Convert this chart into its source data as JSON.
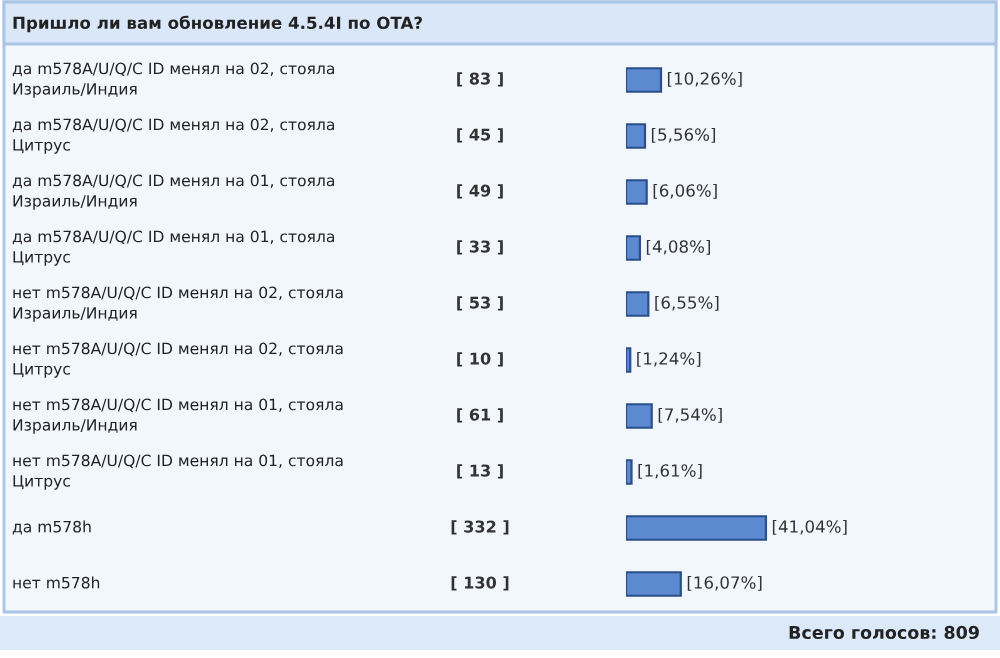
{
  "chart_data": {
    "type": "bar",
    "orientation": "horizontal",
    "title": "Пришло ли вам обновление 4.5.4I по OTA?",
    "categories": [
      "да m578A/U/Q/C ID менял на 02, стояла Израиль/Индия",
      "да m578A/U/Q/C ID менял на 02, стояла Цитрус",
      "да m578A/U/Q/C ID менял на 01, стояла Израиль/Индия",
      "да m578A/U/Q/C ID менял на 01, стояла Цитрус",
      "нет m578A/U/Q/C ID менял на 02, стояла Израиль/Индия",
      "нет m578A/U/Q/C ID менял на 02, стояла Цитрус",
      "нет m578A/U/Q/C ID менял на 01, стояла Израиль/Индия",
      "нет m578A/U/Q/C ID менял на 01, стояла Цитрус",
      "да m578h",
      "нет m578h"
    ],
    "values": [
      10.26,
      5.56,
      6.06,
      4.08,
      6.55,
      1.24,
      7.54,
      1.61,
      41.04,
      16.07
    ],
    "value_labels": [
      "[10,26%]",
      "[5,56%]",
      "[6,06%]",
      "[4,08%]",
      "[6,55%]",
      "[1,24%]",
      "[7,54%]",
      "[1,61%]",
      "[41,04%]",
      "[16,07%]"
    ],
    "color": "#5b8ad0",
    "annotations": [
      "[ 83 ]",
      "[ 45 ]",
      "[ 49 ]",
      "[ 33 ]",
      "[ 53 ]",
      "[ 10 ]",
      "[ 61 ]",
      "[ 13 ]",
      "[ 332 ]",
      "[ 130 ]",
      "Всего голосов: 809"
    ]
  }
}
